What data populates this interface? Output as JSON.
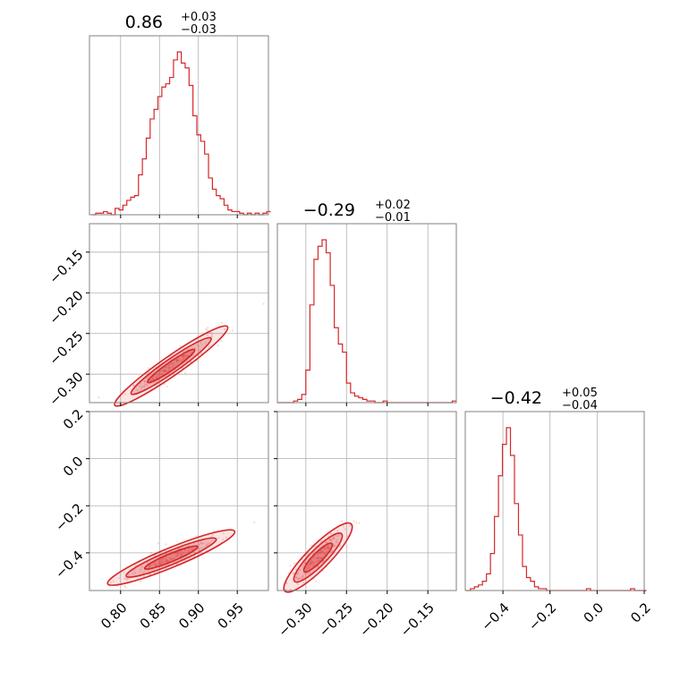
{
  "chart_data": {
    "type": "corner",
    "color": "#d62728",
    "grid": true,
    "parameters": [
      {
        "title_value": "0.86",
        "title_plus": "+0.03",
        "title_minus": "−0.03",
        "range": [
          0.76,
          0.99
        ],
        "ticks": [
          0.8,
          0.85,
          0.9,
          0.95
        ],
        "tick_labels": [
          "0.80",
          "0.85",
          "0.90",
          "0.95"
        ],
        "hist": {
          "bins": [
            0.763,
            0.768,
            0.773,
            0.778,
            0.783,
            0.788,
            0.793,
            0.798,
            0.803,
            0.808,
            0.813,
            0.818,
            0.823,
            0.828,
            0.833,
            0.838,
            0.843,
            0.848,
            0.853,
            0.858,
            0.863,
            0.868,
            0.873,
            0.878,
            0.883,
            0.888,
            0.893,
            0.898,
            0.903,
            0.908,
            0.913,
            0.918,
            0.923,
            0.928,
            0.933,
            0.938,
            0.943,
            0.948,
            0.953,
            0.958,
            0.963,
            0.968,
            0.973,
            0.978,
            0.983,
            0.988
          ],
          "counts": [
            0,
            1,
            1,
            2,
            1,
            0,
            4,
            3,
            6,
            9,
            11,
            12,
            25,
            35,
            48,
            60,
            66,
            74,
            80,
            82,
            86,
            97,
            102,
            95,
            92,
            81,
            62,
            50,
            46,
            38,
            23,
            16,
            12,
            10,
            6,
            3,
            2,
            2,
            1,
            0,
            1,
            0,
            1,
            0,
            1,
            2
          ]
        }
      },
      {
        "title_value": "−0.29",
        "title_plus": "+0.02",
        "title_minus": "−0.01",
        "range": [
          -0.335,
          -0.115
        ],
        "ticks": [
          -0.3,
          -0.25,
          -0.2,
          -0.15
        ],
        "tick_labels": [
          "−0.30",
          "−0.25",
          "−0.20",
          "−0.15"
        ],
        "hist": {
          "bins": [
            -0.335,
            -0.33,
            -0.325,
            -0.32,
            -0.315,
            -0.31,
            -0.305,
            -0.3,
            -0.295,
            -0.29,
            -0.285,
            -0.28,
            -0.275,
            -0.27,
            -0.265,
            -0.26,
            -0.255,
            -0.25,
            -0.245,
            -0.24,
            -0.235,
            -0.23,
            -0.225,
            -0.22,
            -0.215,
            -0.21,
            -0.205,
            -0.2,
            -0.195,
            -0.19,
            -0.185,
            -0.18,
            -0.175,
            -0.17,
            -0.165,
            -0.16,
            -0.155,
            -0.15,
            -0.145,
            -0.14,
            -0.135,
            -0.13,
            -0.125,
            -0.12
          ],
          "counts": [
            0,
            0,
            0,
            0,
            1,
            2,
            5,
            20,
            60,
            88,
            96,
            100,
            92,
            72,
            46,
            36,
            31,
            12,
            6,
            4,
            3,
            2,
            1,
            1,
            0,
            0,
            1,
            0,
            0,
            0,
            0,
            0,
            0,
            0,
            0,
            0,
            0,
            0,
            0,
            0,
            0,
            0,
            0,
            1
          ]
        }
      },
      {
        "title_value": "−0.42",
        "title_plus": "+0.05",
        "title_minus": "−0.04",
        "range": [
          -0.56,
          0.2
        ],
        "ticks": [
          -0.4,
          -0.2,
          0.0,
          0.2
        ],
        "tick_labels": [
          "−0.4",
          "−0.2",
          "0.0",
          "0.2"
        ],
        "hist": {
          "bins": [
            -0.555,
            -0.538,
            -0.521,
            -0.504,
            -0.487,
            -0.47,
            -0.453,
            -0.436,
            -0.419,
            -0.402,
            -0.385,
            -0.368,
            -0.351,
            -0.334,
            -0.317,
            -0.3,
            -0.283,
            -0.266,
            -0.249,
            -0.232,
            -0.215,
            -0.198,
            -0.181,
            -0.164,
            -0.147,
            -0.13,
            -0.113,
            -0.096,
            -0.079,
            -0.062,
            -0.045,
            -0.028,
            -0.011,
            0.006,
            0.023,
            0.04,
            0.057,
            0.074,
            0.091,
            0.108,
            0.125,
            0.142,
            0.159,
            0.176,
            0.193
          ],
          "counts": [
            0,
            1,
            2,
            3,
            5,
            9,
            20,
            40,
            62,
            79,
            88,
            73,
            47,
            30,
            13,
            7,
            5,
            2,
            1,
            1,
            0,
            0,
            0,
            0,
            0,
            0,
            0,
            0,
            0,
            0,
            1,
            0,
            0,
            0,
            0,
            0,
            0,
            0,
            0,
            0,
            0,
            1,
            0,
            0,
            0
          ]
        }
      }
    ]
  }
}
